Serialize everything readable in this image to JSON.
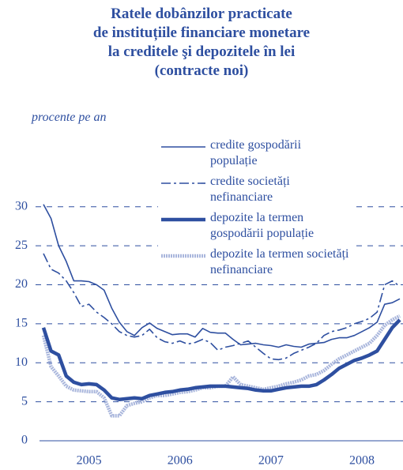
{
  "chart_data": {
    "type": "line",
    "title": "Ratele dobânzilor practicate\nde instituțiile financiare monetare\nla creditele şi depozitele în lei\n(contracte noi)",
    "y_label": "procente pe an",
    "categories": [
      null,
      null,
      null,
      null,
      null,
      null,
      "2005",
      null,
      null,
      null,
      null,
      null,
      null,
      null,
      null,
      null,
      null,
      null,
      "2006",
      null,
      null,
      null,
      null,
      null,
      null,
      null,
      null,
      null,
      null,
      null,
      "2007",
      null,
      null,
      null,
      null,
      null,
      null,
      null,
      null,
      null,
      null,
      null,
      "2008",
      null,
      null,
      null,
      null,
      null
    ],
    "ylim": [
      0,
      40
    ],
    "yticks": [
      0,
      5,
      10,
      15,
      20,
      25,
      30
    ],
    "grid": true,
    "series": [
      {
        "name": "credite gospodării populație",
        "color": "#2e4fa0",
        "line_style": "solid",
        "line_width": 1.6,
        "values": [
          30.3,
          28.5,
          25,
          23,
          20.5,
          20.5,
          20.4,
          20,
          19.3,
          17,
          15.2,
          14,
          13.5,
          14.5,
          15.1,
          14.4,
          14,
          13.6,
          13.7,
          13.7,
          13.3,
          14.4,
          13.9,
          13.8,
          13.8,
          13,
          12.3,
          12.4,
          12.5,
          12.3,
          12.2,
          12,
          12.3,
          12.1,
          12,
          12.4,
          12.5,
          12.6,
          13,
          13.2,
          13.2,
          13.5,
          14,
          14.5,
          15.2,
          17.5,
          17.7,
          18.2
        ]
      },
      {
        "name": "credite societăți nefinanciare",
        "color": "#2e4fa0",
        "line_style": "dashdot",
        "line_width": 1.6,
        "values": [
          24,
          22,
          21.5,
          20.5,
          19,
          17.2,
          17.5,
          16.5,
          15.8,
          15,
          14,
          13.5,
          13.3,
          13.5,
          14.3,
          13.2,
          12.7,
          12.5,
          12.8,
          12.4,
          12.6,
          13,
          12.6,
          11.6,
          12,
          12.2,
          12.5,
          12.8,
          12,
          11.2,
          10.5,
          10.4,
          10.6,
          11.2,
          11.6,
          12,
          12.5,
          13.5,
          14,
          14.2,
          14.5,
          15,
          15.3,
          15.7,
          16.5,
          20,
          20.5,
          19.8
        ]
      },
      {
        "name": "depozite la termen gospodării populație",
        "color": "#2e4fa0",
        "line_style": "solid",
        "line_width": 4.5,
        "values": [
          14.5,
          11.5,
          11,
          8.3,
          7.5,
          7.2,
          7.3,
          7.2,
          6.5,
          5.5,
          5.3,
          5.4,
          5.5,
          5.4,
          5.8,
          6,
          6.2,
          6.3,
          6.5,
          6.6,
          6.8,
          6.9,
          7,
          7,
          7,
          6.9,
          6.8,
          6.7,
          6.5,
          6.4,
          6.4,
          6.6,
          6.8,
          6.9,
          7,
          7,
          7.2,
          7.8,
          8.5,
          9.3,
          9.8,
          10.3,
          10.6,
          11,
          11.5,
          13,
          14.5,
          15.5
        ]
      },
      {
        "name": "depozite la termen societăți nefinanciare",
        "color": "#a9b6dc",
        "line_style": "dotted",
        "line_width": 4.5,
        "values": [
          13.5,
          9.5,
          8.3,
          7,
          6.5,
          6.4,
          6.3,
          6.3,
          5.5,
          3.2,
          3.2,
          4.5,
          4.8,
          5,
          5.5,
          5.8,
          5.8,
          6,
          6.2,
          6.3,
          6.5,
          6.8,
          6.8,
          7,
          7,
          8.2,
          7.2,
          7,
          6.8,
          6.6,
          6.8,
          7,
          7.3,
          7.5,
          7.8,
          8.3,
          8.5,
          9,
          9.8,
          10.5,
          11,
          11.5,
          12,
          12.5,
          13.5,
          14.8,
          15.5,
          16
        ]
      }
    ]
  }
}
